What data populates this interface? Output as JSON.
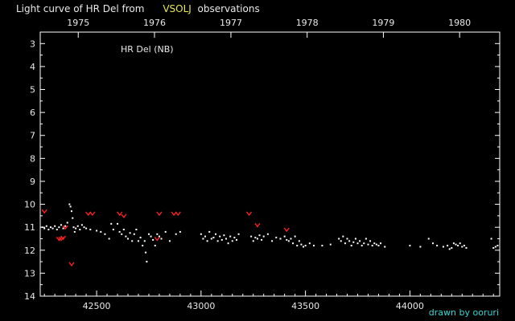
{
  "header": {
    "prefix": "Light curve of HR Del from",
    "source": "VSOLJ",
    "suffix": "observations"
  },
  "footer": {
    "credit": "drawn by ooruri"
  },
  "colors": {
    "background": "#000000",
    "axis": "#ffffff",
    "text": "#e8e8e8",
    "highlight": "#e8e84a",
    "visual_marks": "#ffffff",
    "limit_marks": "#ff2020",
    "credit": "#33d6d6"
  },
  "chart_data": {
    "type": "scatter",
    "title": "HR Del (NB)",
    "xlabel": "",
    "ylabel": "",
    "xlim": [
      42230,
      44430
    ],
    "ylim": [
      14,
      2.5
    ],
    "y_inverted": true,
    "x_ticks": [
      42500,
      43000,
      43500,
      44000
    ],
    "x_tick_labels": [
      "42500",
      "43000",
      "43500",
      "44000"
    ],
    "y_ticks": [
      3,
      4,
      5,
      6,
      7,
      8,
      9,
      10,
      11,
      12,
      13,
      14
    ],
    "y_tick_labels": [
      "3",
      "4",
      "5",
      "6",
      "7",
      "8",
      "9",
      "10",
      "11",
      "12",
      "13",
      "14"
    ],
    "year_ticks": [
      42412,
      42777,
      43143,
      43508,
      43873,
      44238
    ],
    "year_labels": [
      "1975",
      "1976",
      "1977",
      "1978",
      "1979",
      "1980"
    ],
    "series": [
      {
        "marker": "dot",
        "points": [
          [
            42240,
            11.0
          ],
          [
            42250,
            11.05
          ],
          [
            42260,
            10.95
          ],
          [
            42270,
            11.1
          ],
          [
            42280,
            11.0
          ],
          [
            42290,
            11.05
          ],
          [
            42300,
            10.95
          ],
          [
            42310,
            11.1
          ],
          [
            42320,
            11.0
          ],
          [
            42330,
            10.9
          ],
          [
            42340,
            11.05
          ],
          [
            42350,
            10.95
          ],
          [
            42360,
            10.8
          ],
          [
            42370,
            10.0
          ],
          [
            42375,
            10.1
          ],
          [
            42380,
            10.3
          ],
          [
            42385,
            10.6
          ],
          [
            42390,
            11.0
          ],
          [
            42395,
            11.2
          ],
          [
            42400,
            11.05
          ],
          [
            42410,
            10.95
          ],
          [
            42420,
            11.1
          ],
          [
            42430,
            10.9
          ],
          [
            42440,
            11.0
          ],
          [
            42450,
            11.05
          ],
          [
            42470,
            11.1
          ],
          [
            42500,
            11.15
          ],
          [
            42520,
            11.2
          ],
          [
            42540,
            11.3
          ],
          [
            42560,
            11.5
          ],
          [
            42570,
            10.85
          ],
          [
            42580,
            11.1
          ],
          [
            42600,
            10.85
          ],
          [
            42610,
            11.2
          ],
          [
            42620,
            11.3
          ],
          [
            42630,
            11.1
          ],
          [
            42640,
            11.4
          ],
          [
            42650,
            11.5
          ],
          [
            42660,
            11.25
          ],
          [
            42670,
            11.6
          ],
          [
            42680,
            11.3
          ],
          [
            42690,
            11.1
          ],
          [
            42700,
            11.6
          ],
          [
            42710,
            11.45
          ],
          [
            42720,
            11.8
          ],
          [
            42730,
            11.6
          ],
          [
            42735,
            12.1
          ],
          [
            42740,
            12.5
          ],
          [
            42750,
            11.3
          ],
          [
            42760,
            11.4
          ],
          [
            42770,
            11.55
          ],
          [
            42780,
            11.8
          ],
          [
            42790,
            11.3
          ],
          [
            42800,
            11.4
          ],
          [
            42810,
            11.5
          ],
          [
            42830,
            11.2
          ],
          [
            42850,
            11.6
          ],
          [
            42880,
            11.3
          ],
          [
            42900,
            11.2
          ],
          [
            43000,
            11.3
          ],
          [
            43010,
            11.5
          ],
          [
            43020,
            11.4
          ],
          [
            43030,
            11.6
          ],
          [
            43040,
            11.2
          ],
          [
            43050,
            11.5
          ],
          [
            43060,
            11.45
          ],
          [
            43070,
            11.3
          ],
          [
            43080,
            11.6
          ],
          [
            43090,
            11.4
          ],
          [
            43100,
            11.55
          ],
          [
            43110,
            11.35
          ],
          [
            43120,
            11.5
          ],
          [
            43130,
            11.7
          ],
          [
            43140,
            11.4
          ],
          [
            43150,
            11.6
          ],
          [
            43160,
            11.45
          ],
          [
            43170,
            11.55
          ],
          [
            43180,
            11.3
          ],
          [
            43240,
            11.4
          ],
          [
            43250,
            11.6
          ],
          [
            43260,
            11.45
          ],
          [
            43270,
            11.5
          ],
          [
            43280,
            11.35
          ],
          [
            43290,
            11.55
          ],
          [
            43300,
            11.4
          ],
          [
            43320,
            11.3
          ],
          [
            43340,
            11.6
          ],
          [
            43360,
            11.45
          ],
          [
            43380,
            11.5
          ],
          [
            43400,
            11.4
          ],
          [
            43410,
            11.55
          ],
          [
            43420,
            11.6
          ],
          [
            43430,
            11.5
          ],
          [
            43440,
            11.7
          ],
          [
            43450,
            11.4
          ],
          [
            43460,
            11.8
          ],
          [
            43470,
            11.6
          ],
          [
            43480,
            11.75
          ],
          [
            43490,
            11.85
          ],
          [
            43500,
            11.8
          ],
          [
            43520,
            11.7
          ],
          [
            43540,
            11.8
          ],
          [
            43580,
            11.8
          ],
          [
            43620,
            11.75
          ],
          [
            43660,
            11.5
          ],
          [
            43670,
            11.6
          ],
          [
            43680,
            11.4
          ],
          [
            43690,
            11.7
          ],
          [
            43700,
            11.5
          ],
          [
            43710,
            11.6
          ],
          [
            43720,
            11.8
          ],
          [
            43730,
            11.65
          ],
          [
            43740,
            11.5
          ],
          [
            43750,
            11.7
          ],
          [
            43760,
            11.6
          ],
          [
            43770,
            11.8
          ],
          [
            43780,
            11.7
          ],
          [
            43790,
            11.5
          ],
          [
            43800,
            11.75
          ],
          [
            43810,
            11.6
          ],
          [
            43820,
            11.8
          ],
          [
            43830,
            11.7
          ],
          [
            43840,
            11.75
          ],
          [
            43850,
            11.8
          ],
          [
            43860,
            11.7
          ],
          [
            43880,
            11.85
          ],
          [
            44000,
            11.8
          ],
          [
            44050,
            11.85
          ],
          [
            44090,
            11.5
          ],
          [
            44110,
            11.7
          ],
          [
            44130,
            11.8
          ],
          [
            44160,
            11.85
          ],
          [
            44180,
            11.8
          ],
          [
            44190,
            11.95
          ],
          [
            44200,
            11.9
          ],
          [
            44210,
            11.7
          ],
          [
            44220,
            11.75
          ],
          [
            44230,
            11.8
          ],
          [
            44240,
            11.7
          ],
          [
            44250,
            11.85
          ],
          [
            44260,
            11.8
          ],
          [
            44270,
            11.9
          ],
          [
            44390,
            11.5
          ],
          [
            44400,
            11.9
          ],
          [
            44410,
            11.85
          ],
          [
            44420,
            11.8
          ]
        ]
      },
      {
        "marker": "v",
        "points": [
          [
            42250,
            10.3
          ],
          [
            42320,
            11.5
          ],
          [
            42330,
            11.5
          ],
          [
            42340,
            11.45
          ],
          [
            42350,
            11.0
          ],
          [
            42380,
            12.6
          ],
          [
            42460,
            10.4
          ],
          [
            42480,
            10.4
          ],
          [
            42610,
            10.4
          ],
          [
            42630,
            10.5
          ],
          [
            42790,
            11.5
          ],
          [
            42800,
            10.4
          ],
          [
            42870,
            10.4
          ],
          [
            42890,
            10.4
          ],
          [
            43230,
            10.4
          ],
          [
            43270,
            10.9
          ],
          [
            43410,
            11.1
          ]
        ]
      }
    ]
  }
}
